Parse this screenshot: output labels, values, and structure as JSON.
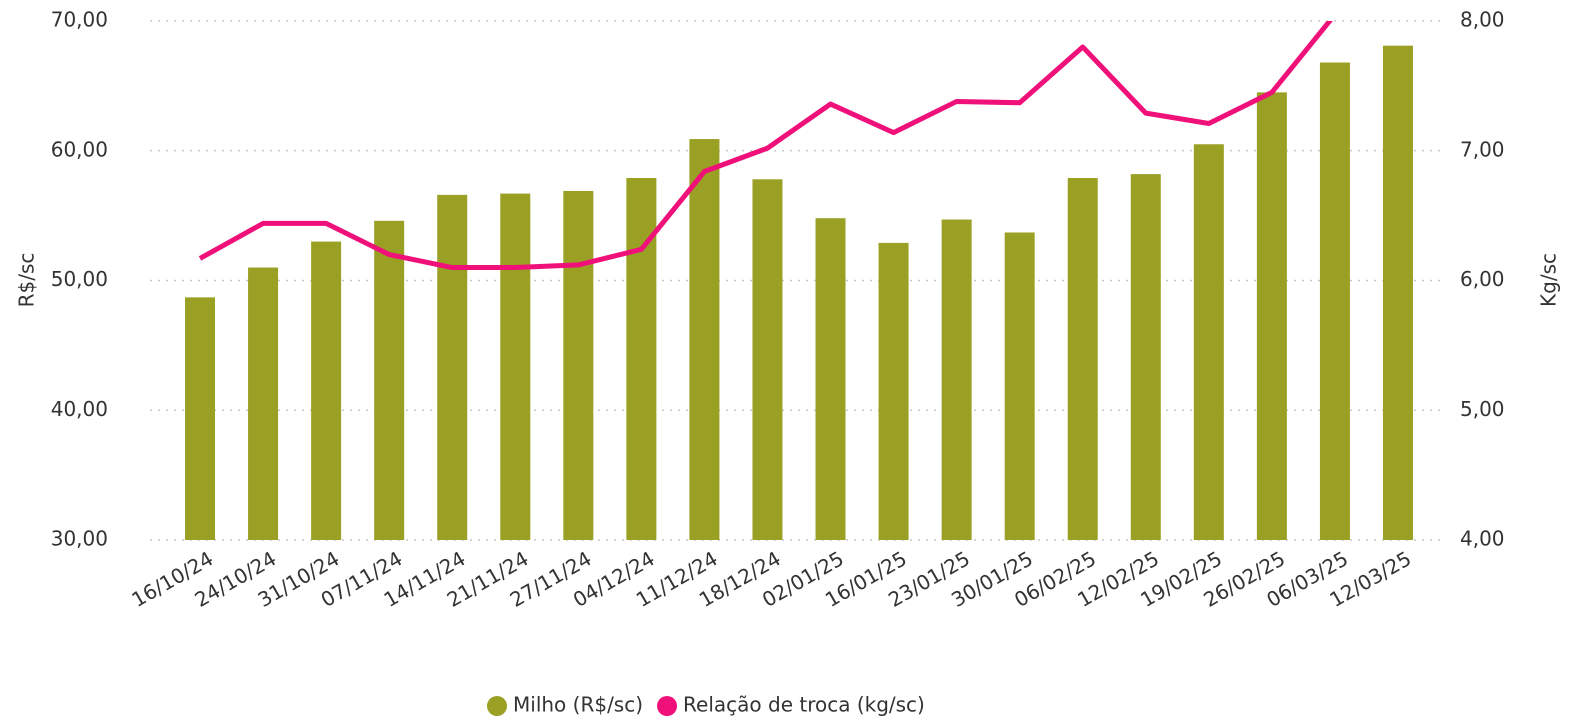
{
  "chart_data": {
    "type": "bar_line",
    "categories": [
      "16/10/24",
      "24/10/24",
      "31/10/24",
      "07/11/24",
      "14/11/24",
      "21/11/24",
      "27/11/24",
      "04/12/24",
      "11/12/24",
      "18/12/24",
      "02/01/25",
      "16/01/25",
      "23/01/25",
      "30/01/25",
      "06/02/25",
      "12/02/25",
      "19/02/25",
      "26/02/25",
      "06/03/25",
      "12/03/25"
    ],
    "series": [
      {
        "name": "Milho (R$/sc)",
        "type": "bar",
        "color": "#9aa023",
        "axis": "y",
        "values": [
          48.7,
          51.0,
          53.0,
          54.6,
          56.6,
          56.7,
          56.9,
          57.9,
          60.9,
          57.8,
          54.8,
          52.9,
          54.7,
          53.7,
          57.9,
          58.2,
          60.5,
          64.5,
          66.8,
          68.1
        ]
      },
      {
        "name": "Relação de troca (kg/sc)",
        "type": "line",
        "color": "#f0107a",
        "axis": "y2",
        "values": [
          6.17,
          6.44,
          6.44,
          6.2,
          6.1,
          6.1,
          6.12,
          6.24,
          6.84,
          7.02,
          7.36,
          7.14,
          7.38,
          7.37,
          7.8,
          7.29,
          7.21,
          7.45,
          8.05,
          null
        ]
      }
    ],
    "ylabel": "R$/sc",
    "y2label": "Kg/sc",
    "ylim": [
      30,
      70
    ],
    "yticks": [
      {
        "value": 30,
        "label": "30,00"
      },
      {
        "value": 40,
        "label": "40,00"
      },
      {
        "value": 50,
        "label": "50,00"
      },
      {
        "value": 60,
        "label": "60,00"
      },
      {
        "value": 70,
        "label": "70,00"
      }
    ],
    "y2lim": [
      4,
      8
    ],
    "y2ticks": [
      {
        "value": 4,
        "label": "4,00"
      },
      {
        "value": 5,
        "label": "5,00"
      },
      {
        "value": 6,
        "label": "6,00"
      },
      {
        "value": 7,
        "label": "7,00"
      },
      {
        "value": 8,
        "label": "8,00"
      }
    ],
    "grid": true,
    "legend": "bottom"
  }
}
